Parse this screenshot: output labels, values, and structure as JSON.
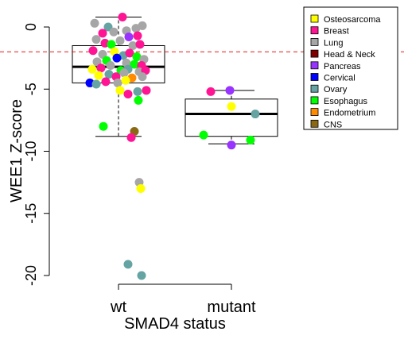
{
  "chart_data": {
    "type": "scatter",
    "subtype": "boxplot-with-jittered-points",
    "xlabel": "SMAD4 status",
    "ylabel": "WEE1 Z-score",
    "categories": [
      "wt",
      "mutant"
    ],
    "ylim": [
      -20,
      0.5
    ],
    "yticks": [
      0,
      -5,
      -10,
      -15,
      -20
    ],
    "ytick_labels": [
      "0",
      "-5",
      "-10",
      "-15",
      "-20"
    ],
    "threshold_line": {
      "y": -2,
      "color": "#e41a1c",
      "style": "dashed"
    },
    "legend": {
      "placement": "top-right",
      "entries": [
        {
          "name": "Osteosarcoma",
          "color": "#ffff00"
        },
        {
          "name": "Breast",
          "color": "#ff1493"
        },
        {
          "name": "Lung",
          "color": "#a6a6a6"
        },
        {
          "name": "Head & Neck",
          "color": "#800000"
        },
        {
          "name": "Pancreas",
          "color": "#9933ff"
        },
        {
          "name": "Cervical",
          "color": "#0000ff"
        },
        {
          "name": "Ovary",
          "color": "#66a3a3"
        },
        {
          "name": "Esophagus",
          "color": "#00ff00"
        },
        {
          "name": "Endometrium",
          "color": "#ff8c00"
        },
        {
          "name": "CNS",
          "color": "#8b6914"
        }
      ]
    },
    "boxes": [
      {
        "category": "wt",
        "whisker_low": -8.8,
        "q1": -4.5,
        "median": -3.2,
        "q3": -1.5,
        "whisker_high": 0.8
      },
      {
        "category": "mutant",
        "whisker_low": -9.4,
        "q1": -8.8,
        "median": -7.0,
        "q3": -5.8,
        "whisker_high": -5.1
      }
    ],
    "points": [
      {
        "group": "wt",
        "dx": -0.3,
        "y": 0.3,
        "type": "Lung"
      },
      {
        "group": "wt",
        "dx": 0.05,
        "y": 0.8,
        "type": "Breast"
      },
      {
        "group": "wt",
        "dx": -0.13,
        "y": 0.0,
        "type": "Ovary"
      },
      {
        "group": "wt",
        "dx": 0.22,
        "y": -0.1,
        "type": "Lung"
      },
      {
        "group": "wt",
        "dx": 0.3,
        "y": 0.1,
        "type": "Lung"
      },
      {
        "group": "wt",
        "dx": 0.1,
        "y": -0.3,
        "type": "Lung"
      },
      {
        "group": "wt",
        "dx": -0.2,
        "y": -0.5,
        "type": "Breast"
      },
      {
        "group": "wt",
        "dx": -0.06,
        "y": -0.4,
        "type": "Lung"
      },
      {
        "group": "wt",
        "dx": 0.13,
        "y": -0.8,
        "type": "Pancreas"
      },
      {
        "group": "wt",
        "dx": 0.24,
        "y": -0.7,
        "type": "Breast"
      },
      {
        "group": "wt",
        "dx": -0.28,
        "y": -1.0,
        "type": "Lung"
      },
      {
        "group": "wt",
        "dx": -0.17,
        "y": -1.3,
        "type": "Breast"
      },
      {
        "group": "wt",
        "dx": -0.09,
        "y": -1.4,
        "type": "Esophagus"
      },
      {
        "group": "wt",
        "dx": 0.02,
        "y": -1.1,
        "type": "Lung"
      },
      {
        "group": "wt",
        "dx": 0.18,
        "y": -1.5,
        "type": "Lung"
      },
      {
        "group": "wt",
        "dx": 0.27,
        "y": -1.4,
        "type": "Breast"
      },
      {
        "group": "wt",
        "dx": -0.32,
        "y": -1.9,
        "type": "Breast"
      },
      {
        "group": "wt",
        "dx": -0.2,
        "y": -2.2,
        "type": "Lung"
      },
      {
        "group": "wt",
        "dx": -0.05,
        "y": -2.0,
        "type": "Osteosarcoma"
      },
      {
        "group": "wt",
        "dx": 0.06,
        "y": -2.3,
        "type": "Ovary"
      },
      {
        "group": "wt",
        "dx": 0.14,
        "y": -2.1,
        "type": "Breast"
      },
      {
        "group": "wt",
        "dx": 0.23,
        "y": -2.4,
        "type": "Esophagus"
      },
      {
        "group": "wt",
        "dx": 0.32,
        "y": -2.6,
        "type": "Lung"
      },
      {
        "group": "wt",
        "dx": -0.27,
        "y": -2.8,
        "type": "Lung"
      },
      {
        "group": "wt",
        "dx": -0.15,
        "y": -2.7,
        "type": "Esophagus"
      },
      {
        "group": "wt",
        "dx": -0.02,
        "y": -2.5,
        "type": "Cervical"
      },
      {
        "group": "wt",
        "dx": 0.1,
        "y": -2.9,
        "type": "Lung"
      },
      {
        "group": "wt",
        "dx": 0.2,
        "y": -3.0,
        "type": "Esophagus"
      },
      {
        "group": "wt",
        "dx": 0.29,
        "y": -3.1,
        "type": "Breast"
      },
      {
        "group": "wt",
        "dx": -0.33,
        "y": -3.4,
        "type": "Osteosarcoma"
      },
      {
        "group": "wt",
        "dx": -0.22,
        "y": -3.3,
        "type": "Breast"
      },
      {
        "group": "wt",
        "dx": -0.1,
        "y": -3.1,
        "type": "Lung"
      },
      {
        "group": "wt",
        "dx": 0.03,
        "y": -3.5,
        "type": "Esophagus"
      },
      {
        "group": "wt",
        "dx": 0.12,
        "y": -3.4,
        "type": "Ovary"
      },
      {
        "group": "wt",
        "dx": 0.26,
        "y": -3.6,
        "type": "Lung"
      },
      {
        "group": "wt",
        "dx": 0.34,
        "y": -3.5,
        "type": "Breast"
      },
      {
        "group": "wt",
        "dx": -0.25,
        "y": -3.9,
        "type": "Osteosarcoma"
      },
      {
        "group": "wt",
        "dx": -0.12,
        "y": -3.8,
        "type": "Ovary"
      },
      {
        "group": "wt",
        "dx": -0.03,
        "y": -4.0,
        "type": "Breast"
      },
      {
        "group": "wt",
        "dx": 0.07,
        "y": -3.7,
        "type": "Lung"
      },
      {
        "group": "wt",
        "dx": 0.17,
        "y": -4.1,
        "type": "Endometrium"
      },
      {
        "group": "wt",
        "dx": 0.3,
        "y": -4.0,
        "type": "Lung"
      },
      {
        "group": "wt",
        "dx": -0.36,
        "y": -4.5,
        "type": "Cervical"
      },
      {
        "group": "wt",
        "dx": -0.28,
        "y": -4.6,
        "type": "Ovary"
      },
      {
        "group": "wt",
        "dx": -0.16,
        "y": -4.4,
        "type": "Breast"
      },
      {
        "group": "wt",
        "dx": -0.01,
        "y": -4.5,
        "type": "Lung"
      },
      {
        "group": "wt",
        "dx": 0.09,
        "y": -4.3,
        "type": "Osteosarcoma"
      },
      {
        "group": "wt",
        "dx": 0.02,
        "y": -5.1,
        "type": "Osteosarcoma"
      },
      {
        "group": "wt",
        "dx": 0.12,
        "y": -5.4,
        "type": "Breast"
      },
      {
        "group": "wt",
        "dx": 0.24,
        "y": -5.2,
        "type": "Ovary"
      },
      {
        "group": "wt",
        "dx": 0.35,
        "y": -5.1,
        "type": "Breast"
      },
      {
        "group": "wt",
        "dx": 0.25,
        "y": -5.9,
        "type": "Esophagus"
      },
      {
        "group": "wt",
        "dx": -0.19,
        "y": -8.0,
        "type": "Esophagus"
      },
      {
        "group": "wt",
        "dx": 0.2,
        "y": -8.4,
        "type": "CNS"
      },
      {
        "group": "wt",
        "dx": 0.16,
        "y": -8.9,
        "type": "Breast"
      },
      {
        "group": "wt",
        "dx": 0.26,
        "y": -12.5,
        "type": "Lung"
      },
      {
        "group": "wt",
        "dx": 0.28,
        "y": -13.0,
        "type": "Osteosarcoma"
      },
      {
        "group": "wt",
        "dx": 0.12,
        "y": -19.1,
        "type": "Ovary"
      },
      {
        "group": "wt",
        "dx": 0.29,
        "y": -20.0,
        "type": "Ovary"
      },
      {
        "group": "mutant",
        "dx": -0.26,
        "y": -5.2,
        "type": "Breast"
      },
      {
        "group": "mutant",
        "dx": -0.02,
        "y": -5.1,
        "type": "Pancreas"
      },
      {
        "group": "mutant",
        "dx": 0.0,
        "y": -6.4,
        "type": "Osteosarcoma"
      },
      {
        "group": "mutant",
        "dx": 0.3,
        "y": -7.0,
        "type": "Ovary"
      },
      {
        "group": "mutant",
        "dx": -0.35,
        "y": -8.7,
        "type": "Esophagus"
      },
      {
        "group": "mutant",
        "dx": 0.24,
        "y": -9.1,
        "type": "Esophagus"
      },
      {
        "group": "mutant",
        "dx": 0.0,
        "y": -9.5,
        "type": "Pancreas"
      }
    ]
  }
}
